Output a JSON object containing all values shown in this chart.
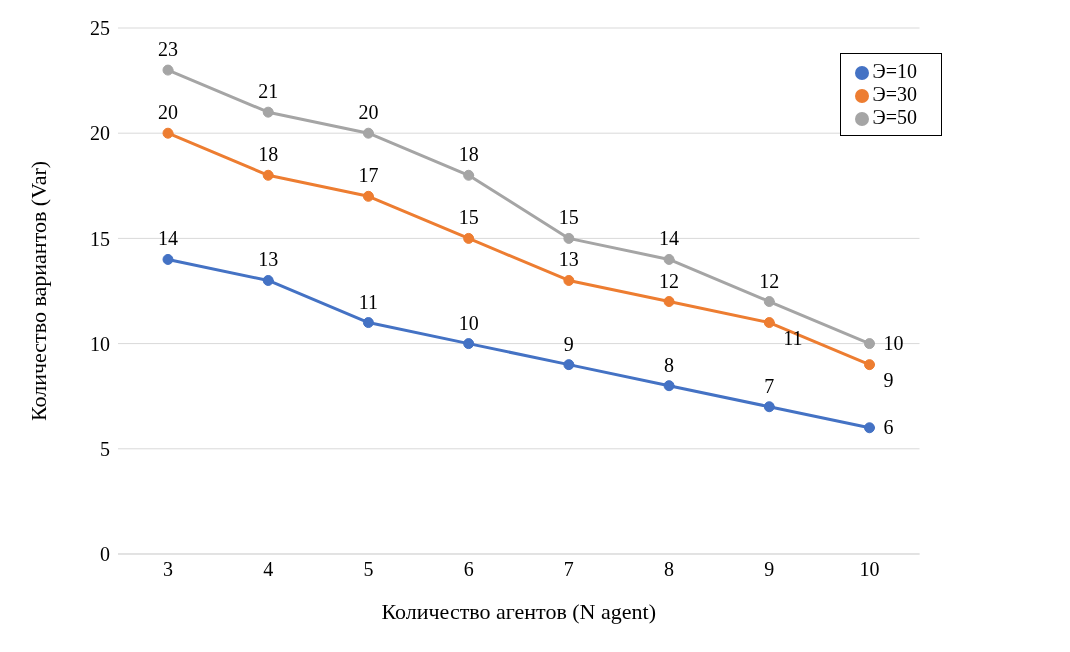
{
  "chart_data": {
    "type": "line",
    "xlabel": "Количество агентов (N agent)",
    "ylabel": "Количество вариантов (Var)",
    "categories": [
      "3",
      "4",
      "5",
      "6",
      "7",
      "8",
      "9",
      "10"
    ],
    "series": [
      {
        "name": "Э=10",
        "color": "#4472c4",
        "values": [
          14,
          13,
          11,
          10,
          9,
          8,
          7,
          6
        ]
      },
      {
        "name": "Э=30",
        "color": "#ed7d31",
        "values": [
          20,
          18,
          17,
          15,
          13,
          12,
          11,
          9
        ]
      },
      {
        "name": "Э=50",
        "color": "#a5a5a5",
        "values": [
          23,
          21,
          20,
          18,
          15,
          14,
          12,
          10
        ]
      }
    ],
    "ylim": [
      0,
      25
    ],
    "yticks": [
      0,
      5,
      10,
      15,
      20,
      25
    ],
    "grid": "y",
    "legend": "top right",
    "marker": "circle",
    "line_style": "solid",
    "data_labels": true
  }
}
